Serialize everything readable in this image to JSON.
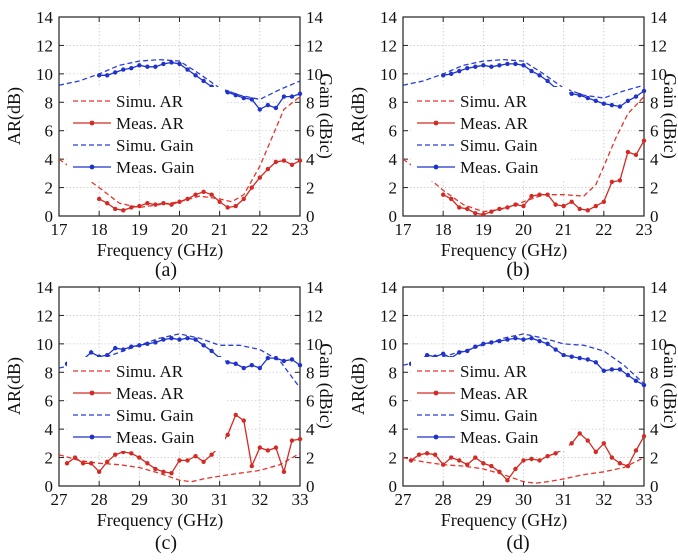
{
  "chart_data": [
    {
      "type": "line",
      "panel_label": "(a)",
      "xlabel": "Frequency (GHz)",
      "ylabel_left": "AR(dB)",
      "ylabel_right": "Gain (dBic)",
      "xlim": [
        17,
        23
      ],
      "xticks": [
        17,
        18,
        19,
        20,
        21,
        22,
        23
      ],
      "ylim": [
        0,
        14
      ],
      "yticks": [
        0,
        2,
        4,
        6,
        8,
        10,
        12,
        14
      ],
      "grid": true,
      "legend_position": "left-center",
      "series": [
        {
          "name": "Simu. AR",
          "axis": "left",
          "style": "dashed",
          "marker": false,
          "color": "#e8322c",
          "x": [
            17,
            17.5,
            18,
            18.5,
            19,
            19.5,
            20,
            20.5,
            21,
            21.3,
            21.6,
            22,
            22.3,
            22.6,
            23
          ],
          "y": [
            4.0,
            3.0,
            2.0,
            0.9,
            0.6,
            0.8,
            1.0,
            1.4,
            1.2,
            1.0,
            1.5,
            3.5,
            5.5,
            7.5,
            8.4
          ]
        },
        {
          "name": "Meas. AR",
          "axis": "left",
          "style": "solid",
          "marker": true,
          "color": "#d42a24",
          "x": [
            18,
            18.2,
            18.4,
            18.6,
            18.8,
            19,
            19.2,
            19.4,
            19.6,
            19.8,
            20,
            20.2,
            20.4,
            20.6,
            20.8,
            21,
            21.2,
            21.4,
            21.6,
            21.8,
            22,
            22.2,
            22.4,
            22.6,
            22.8,
            23
          ],
          "y": [
            1.2,
            0.9,
            0.5,
            0.4,
            0.6,
            0.7,
            0.9,
            0.8,
            0.9,
            0.8,
            1.0,
            1.2,
            1.5,
            1.7,
            1.5,
            1.0,
            0.6,
            0.7,
            1.2,
            2.0,
            2.7,
            3.3,
            3.8,
            3.9,
            3.6,
            3.9
          ]
        },
        {
          "name": "Simu. Gain",
          "axis": "right",
          "style": "dashed",
          "marker": false,
          "color": "#2b3fd8",
          "x": [
            17,
            17.5,
            18,
            18.5,
            19,
            19.5,
            20,
            20.5,
            21,
            21.5,
            22,
            22.5,
            23
          ],
          "y": [
            9.2,
            9.5,
            10.0,
            10.6,
            10.9,
            11.0,
            10.9,
            10.0,
            9.0,
            8.5,
            8.2,
            8.9,
            9.5
          ]
        },
        {
          "name": "Meas. Gain",
          "axis": "right",
          "style": "solid",
          "marker": true,
          "color": "#1f33cc",
          "x": [
            18,
            18.2,
            18.4,
            18.6,
            18.8,
            19,
            19.2,
            19.4,
            19.6,
            19.8,
            20,
            20.2,
            20.4,
            20.6,
            20.8,
            21,
            21.2,
            21.4,
            21.6,
            21.8,
            22,
            22.2,
            22.4,
            22.6,
            22.8,
            23
          ],
          "y": [
            9.9,
            9.9,
            10.1,
            10.3,
            10.4,
            10.6,
            10.5,
            10.5,
            10.7,
            10.8,
            10.7,
            10.3,
            9.9,
            9.5,
            9.1,
            8.9,
            8.7,
            8.5,
            8.3,
            8.2,
            7.5,
            7.8,
            7.6,
            8.4,
            8.4,
            8.6
          ]
        }
      ]
    },
    {
      "type": "line",
      "panel_label": "(b)",
      "xlabel": "Frequency (GHz)",
      "ylabel_left": "AR(dB)",
      "ylabel_right": "Gain (dBic)",
      "xlim": [
        17,
        23
      ],
      "xticks": [
        17,
        18,
        19,
        20,
        21,
        22,
        23
      ],
      "ylim": [
        0,
        14
      ],
      "yticks": [
        0,
        2,
        4,
        6,
        8,
        10,
        12,
        14
      ],
      "grid": true,
      "legend_position": "left-center",
      "series": [
        {
          "name": "Simu. AR",
          "axis": "left",
          "style": "dashed",
          "marker": false,
          "color": "#e8322c",
          "x": [
            17,
            17.5,
            18,
            18.5,
            19,
            19.5,
            20,
            20.5,
            21,
            21.5,
            21.8,
            22,
            22.3,
            22.6,
            23
          ],
          "y": [
            4.0,
            3.0,
            1.8,
            0.8,
            0.3,
            0.5,
            1.0,
            1.5,
            1.5,
            1.4,
            2.2,
            3.5,
            5.5,
            7.2,
            8.4
          ]
        },
        {
          "name": "Meas. AR",
          "axis": "left",
          "style": "solid",
          "marker": true,
          "color": "#d42a24",
          "x": [
            18,
            18.2,
            18.4,
            18.6,
            18.8,
            19,
            19.2,
            19.4,
            19.6,
            19.8,
            20,
            20.2,
            20.4,
            20.6,
            20.8,
            21,
            21.2,
            21.4,
            21.6,
            21.8,
            22,
            22.2,
            22.4,
            22.6,
            22.8,
            23
          ],
          "y": [
            1.5,
            1.2,
            0.6,
            0.5,
            0.2,
            0.1,
            0.3,
            0.5,
            0.6,
            0.8,
            0.7,
            1.4,
            1.5,
            1.5,
            0.8,
            0.7,
            1.0,
            0.5,
            0.4,
            0.7,
            1.0,
            2.4,
            2.5,
            4.5,
            4.3,
            5.3
          ]
        },
        {
          "name": "Simu. Gain",
          "axis": "right",
          "style": "dashed",
          "marker": false,
          "color": "#2b3fd8",
          "x": [
            17,
            17.5,
            18,
            18.5,
            19,
            19.5,
            20,
            20.5,
            21,
            21.5,
            22,
            22.5,
            23
          ],
          "y": [
            9.2,
            9.5,
            10.0,
            10.6,
            10.9,
            11.0,
            10.9,
            10.0,
            9.0,
            8.5,
            8.3,
            8.8,
            9.2
          ]
        },
        {
          "name": "Meas. Gain",
          "axis": "right",
          "style": "solid",
          "marker": true,
          "color": "#1f33cc",
          "x": [
            18,
            18.2,
            18.4,
            18.6,
            18.8,
            19,
            19.2,
            19.4,
            19.6,
            19.8,
            20,
            20.2,
            20.4,
            20.6,
            20.8,
            21,
            21.2,
            21.4,
            21.6,
            21.8,
            22,
            22.2,
            22.4,
            22.6,
            22.8,
            23
          ],
          "y": [
            9.9,
            10.0,
            10.2,
            10.4,
            10.5,
            10.6,
            10.5,
            10.6,
            10.7,
            10.7,
            10.6,
            10.2,
            9.9,
            9.5,
            9.0,
            8.8,
            8.6,
            8.5,
            8.3,
            8.1,
            7.9,
            7.8,
            7.7,
            8.1,
            8.4,
            8.8
          ]
        }
      ]
    },
    {
      "type": "line",
      "panel_label": "(c)",
      "xlabel": "Frequency (GHz)",
      "ylabel_left": "AR(dB)",
      "ylabel_right": "Gain (dBic)",
      "xlim": [
        27,
        33
      ],
      "xticks": [
        27,
        28,
        29,
        30,
        31,
        32,
        33
      ],
      "ylim": [
        0,
        14
      ],
      "yticks": [
        0,
        2,
        4,
        6,
        8,
        10,
        12,
        14
      ],
      "grid": true,
      "legend_position": "left-center",
      "series": [
        {
          "name": "Simu. AR",
          "axis": "left",
          "style": "dashed",
          "marker": false,
          "color": "#e8322c",
          "x": [
            27,
            27.5,
            28,
            28.5,
            29,
            29.5,
            30,
            30.3,
            30.6,
            31,
            31.5,
            32,
            32.5,
            33
          ],
          "y": [
            2.2,
            1.8,
            1.6,
            1.5,
            1.3,
            0.9,
            0.4,
            0.3,
            0.5,
            0.7,
            0.9,
            1.1,
            1.5,
            2.3
          ]
        },
        {
          "name": "Meas. AR",
          "axis": "left",
          "style": "solid",
          "marker": true,
          "color": "#d42a24",
          "x": [
            27.2,
            27.4,
            27.6,
            27.8,
            28,
            28.2,
            28.4,
            28.6,
            28.8,
            29,
            29.2,
            29.4,
            29.6,
            29.8,
            30,
            30.2,
            30.4,
            30.6,
            30.8,
            31,
            31.2,
            31.4,
            31.6,
            31.8,
            32,
            32.2,
            32.4,
            32.6,
            32.8,
            33
          ],
          "y": [
            1.6,
            2.0,
            1.6,
            1.6,
            1.0,
            1.7,
            2.2,
            2.4,
            2.3,
            2.0,
            1.6,
            1.2,
            1.0,
            0.9,
            1.8,
            1.8,
            2.1,
            1.7,
            2.2,
            2.8,
            3.6,
            5.0,
            4.6,
            1.4,
            2.7,
            2.5,
            2.7,
            1.0,
            3.2,
            3.3
          ]
        },
        {
          "name": "Simu. Gain",
          "axis": "right",
          "style": "dashed",
          "marker": false,
          "color": "#2b3fd8",
          "x": [
            27,
            27.5,
            28,
            28.5,
            29,
            29.5,
            30,
            30.5,
            31,
            31.5,
            32,
            32.5,
            33
          ],
          "y": [
            8.3,
            8.6,
            8.9,
            9.4,
            9.9,
            10.4,
            10.7,
            10.4,
            9.9,
            9.9,
            9.6,
            8.8,
            6.9
          ]
        },
        {
          "name": "Meas. Gain",
          "axis": "right",
          "style": "solid",
          "marker": true,
          "color": "#1f33cc",
          "x": [
            27.2,
            27.4,
            27.6,
            27.8,
            28,
            28.2,
            28.4,
            28.6,
            28.8,
            29,
            29.2,
            29.4,
            29.6,
            29.8,
            30,
            30.2,
            30.4,
            30.6,
            30.8,
            31,
            31.2,
            31.4,
            31.6,
            31.8,
            32,
            32.2,
            32.4,
            32.6,
            32.8,
            33
          ],
          "y": [
            8.6,
            8.8,
            8.9,
            9.4,
            9.1,
            9.2,
            9.7,
            9.6,
            9.8,
            9.9,
            10.0,
            10.1,
            10.3,
            10.4,
            10.3,
            10.4,
            10.3,
            9.9,
            9.5,
            9.0,
            8.7,
            8.6,
            8.3,
            8.5,
            8.3,
            9.0,
            9.0,
            8.8,
            8.9,
            8.5
          ]
        }
      ]
    },
    {
      "type": "line",
      "panel_label": "(d)",
      "xlabel": "Frequency (GHz)",
      "ylabel_left": "AR(dB)",
      "ylabel_right": "Gain (dBic)",
      "xlim": [
        27,
        33
      ],
      "xticks": [
        27,
        28,
        29,
        30,
        31,
        32,
        33
      ],
      "ylim": [
        0,
        14
      ],
      "yticks": [
        0,
        2,
        4,
        6,
        8,
        10,
        12,
        14
      ],
      "grid": true,
      "legend_position": "left-center",
      "series": [
        {
          "name": "Simu. AR",
          "axis": "left",
          "style": "dashed",
          "marker": false,
          "color": "#e8322c",
          "x": [
            27,
            27.5,
            28,
            28.5,
            29,
            29.5,
            30,
            30.3,
            30.6,
            31,
            31.5,
            32,
            32.5,
            33
          ],
          "y": [
            2.0,
            1.7,
            1.5,
            1.4,
            1.2,
            0.8,
            0.3,
            0.2,
            0.3,
            0.5,
            0.8,
            1.0,
            1.3,
            2.0
          ]
        },
        {
          "name": "Meas. AR",
          "axis": "left",
          "style": "solid",
          "marker": true,
          "color": "#d42a24",
          "x": [
            27.2,
            27.4,
            27.6,
            27.8,
            28,
            28.2,
            28.4,
            28.6,
            28.8,
            29,
            29.2,
            29.4,
            29.6,
            29.8,
            30,
            30.2,
            30.4,
            30.6,
            30.8,
            31,
            31.2,
            31.4,
            31.6,
            31.8,
            32,
            32.2,
            32.4,
            32.6,
            32.8,
            33
          ],
          "y": [
            1.8,
            2.2,
            2.3,
            2.2,
            1.5,
            2.0,
            1.8,
            1.5,
            2.0,
            1.6,
            1.4,
            1.0,
            0.4,
            1.2,
            1.8,
            1.9,
            1.8,
            2.1,
            2.3,
            2.6,
            3.0,
            3.7,
            3.2,
            2.4,
            3.0,
            2.0,
            1.6,
            1.4,
            2.5,
            3.5
          ]
        },
        {
          "name": "Simu. Gain",
          "axis": "right",
          "style": "dashed",
          "marker": false,
          "color": "#2b3fd8",
          "x": [
            27,
            27.5,
            28,
            28.5,
            29,
            29.5,
            30,
            30.5,
            31,
            31.5,
            32,
            32.5,
            33
          ],
          "y": [
            8.5,
            8.8,
            9.1,
            9.5,
            9.9,
            10.4,
            10.7,
            10.4,
            10.0,
            9.9,
            9.5,
            8.5,
            7.2
          ]
        },
        {
          "name": "Meas. Gain",
          "axis": "right",
          "style": "solid",
          "marker": true,
          "color": "#1f33cc",
          "x": [
            27.2,
            27.4,
            27.6,
            27.8,
            28,
            28.2,
            28.4,
            28.6,
            28.8,
            29,
            29.2,
            29.4,
            29.6,
            29.8,
            30,
            30.2,
            30.4,
            30.6,
            30.8,
            31,
            31.2,
            31.4,
            31.6,
            31.8,
            32,
            32.2,
            32.4,
            32.6,
            32.8,
            33
          ],
          "y": [
            8.6,
            8.8,
            9.2,
            9.1,
            9.3,
            9.0,
            9.4,
            9.5,
            9.8,
            10.0,
            10.1,
            10.2,
            10.3,
            10.4,
            10.3,
            10.4,
            10.2,
            10.0,
            9.6,
            9.2,
            9.1,
            9.0,
            8.9,
            8.7,
            8.1,
            8.2,
            8.2,
            7.8,
            7.4,
            7.1
          ]
        }
      ]
    }
  ]
}
